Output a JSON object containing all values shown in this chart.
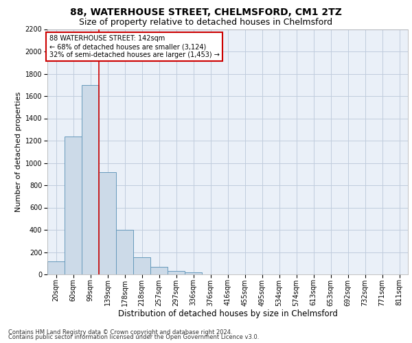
{
  "title_line1": "88, WATERHOUSE STREET, CHELMSFORD, CM1 2TZ",
  "title_line2": "Size of property relative to detached houses in Chelmsford",
  "xlabel": "Distribution of detached houses by size in Chelmsford",
  "ylabel": "Number of detached properties",
  "footnote1": "Contains HM Land Registry data © Crown copyright and database right 2024.",
  "footnote2": "Contains public sector information licensed under the Open Government Licence v3.0.",
  "bin_labels": [
    "20sqm",
    "60sqm",
    "99sqm",
    "139sqm",
    "178sqm",
    "218sqm",
    "257sqm",
    "297sqm",
    "336sqm",
    "376sqm",
    "416sqm",
    "455sqm",
    "495sqm",
    "534sqm",
    "574sqm",
    "613sqm",
    "653sqm",
    "692sqm",
    "732sqm",
    "771sqm",
    "811sqm"
  ],
  "bar_values": [
    120,
    1240,
    1700,
    920,
    400,
    155,
    65,
    30,
    20,
    0,
    0,
    0,
    0,
    0,
    0,
    0,
    0,
    0,
    0,
    0,
    0
  ],
  "bar_color": "#ccdae8",
  "bar_edge_color": "#6699bb",
  "vline_color": "#cc0000",
  "vline_x": 2.5,
  "annotation_text": "88 WATERHOUSE STREET: 142sqm\n← 68% of detached houses are smaller (3,124)\n32% of semi-detached houses are larger (1,453) →",
  "annotation_box_color": "#ffffff",
  "annotation_box_edge": "#cc0000",
  "ylim": [
    0,
    2200
  ],
  "yticks": [
    0,
    200,
    400,
    600,
    800,
    1000,
    1200,
    1400,
    1600,
    1800,
    2000,
    2200
  ],
  "grid_color": "#c0ccdd",
  "background_color": "#eaf0f8",
  "title_fontsize": 10,
  "subtitle_fontsize": 9,
  "ylabel_fontsize": 8,
  "xlabel_fontsize": 8.5,
  "tick_fontsize": 7,
  "footnote_fontsize": 6,
  "annot_fontsize": 7
}
